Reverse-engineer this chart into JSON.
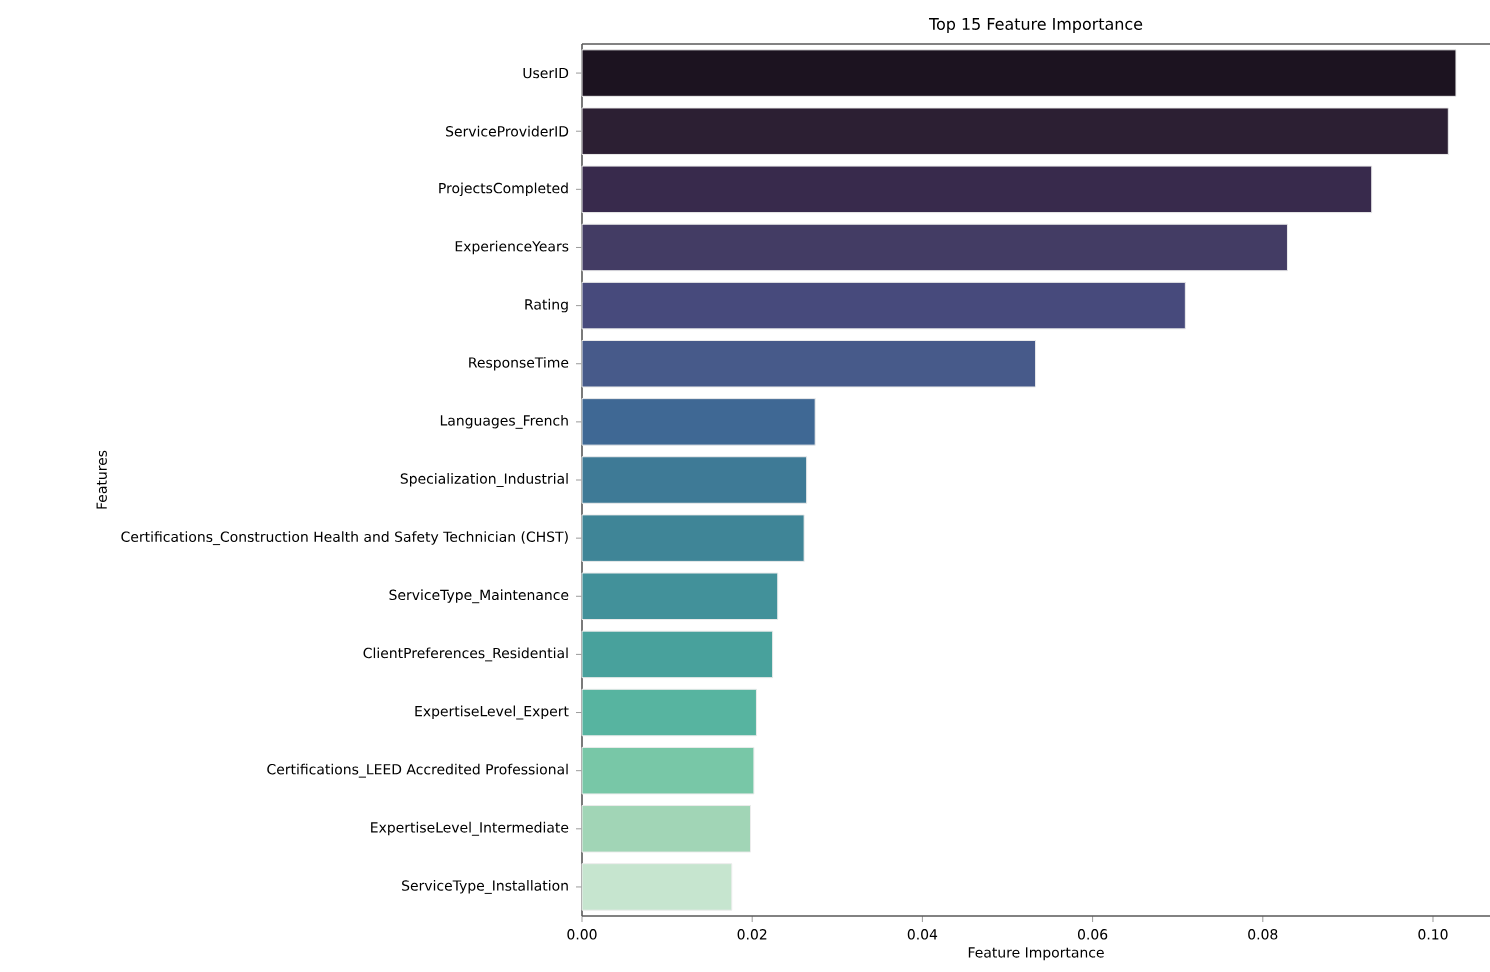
{
  "chart_data": {
    "type": "bar",
    "orientation": "horizontal",
    "title": "Top 15 Feature Importance",
    "xlabel": "Feature Importance",
    "ylabel": "Features",
    "categories": [
      "UserID",
      "ServiceProviderID",
      "ProjectsCompleted",
      "ExperienceYears",
      "Rating",
      "ResponseTime",
      "Languages_French",
      "Specialization_Industrial",
      "Certifications_Construction Health and Safety Technician (CHST)",
      "ServiceType_Maintenance",
      "ClientPreferences_Residential",
      "ExpertiseLevel_Expert",
      "Certifications_LEED Accredited Professional",
      "ExpertiseLevel_Intermediate",
      "ServiceType_Installation"
    ],
    "values": [
      0.1027,
      0.1018,
      0.0928,
      0.0829,
      0.0709,
      0.0533,
      0.0274,
      0.0264,
      0.0261,
      0.023,
      0.0224,
      0.0205,
      0.0202,
      0.0198,
      0.0176
    ],
    "colors": [
      "#1c1320",
      "#2c1f33",
      "#382a4c",
      "#433c64",
      "#474a7c",
      "#475a8a",
      "#3f6894",
      "#3e7a96",
      "#3f8597",
      "#42919a",
      "#48a19c",
      "#57b4a0",
      "#78c7a7",
      "#a1d5b6",
      "#c6e5cf"
    ],
    "xlim": [
      0,
      0.1067
    ],
    "xticks": [
      {
        "value": 0,
        "label": "0.00"
      },
      {
        "value": 0.02,
        "label": "0.02"
      },
      {
        "value": 0.04,
        "label": "0.04"
      },
      {
        "value": 0.06,
        "label": "0.06"
      },
      {
        "value": 0.08,
        "label": "0.08"
      },
      {
        "value": 0.1,
        "label": "0.10"
      }
    ],
    "grid": false
  }
}
